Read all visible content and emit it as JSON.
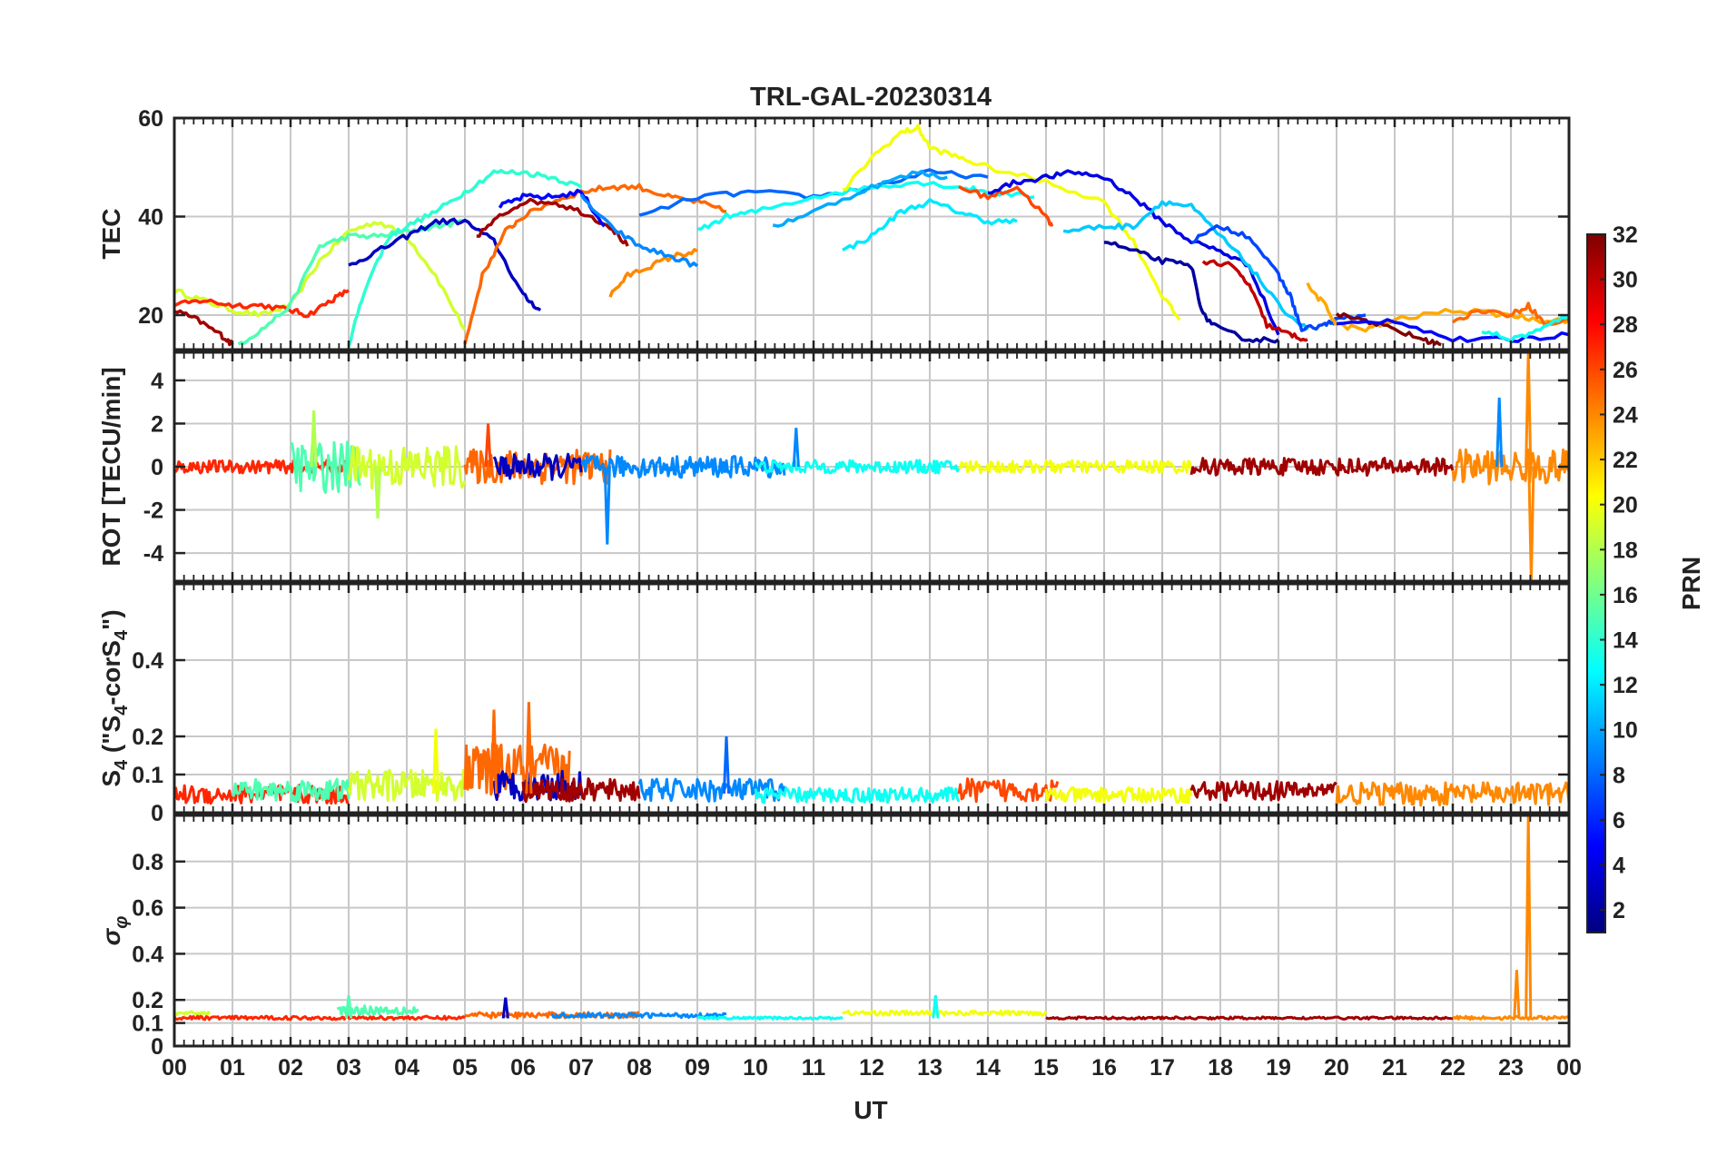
{
  "figure": {
    "title": "TRL-GAL-20230314",
    "xlabel": "UT",
    "x_tick_labels": [
      "00",
      "01",
      "02",
      "03",
      "04",
      "05",
      "06",
      "07",
      "08",
      "09",
      "10",
      "11",
      "12",
      "13",
      "14",
      "15",
      "16",
      "17",
      "18",
      "19",
      "20",
      "21",
      "22",
      "23",
      "00"
    ]
  },
  "colorbar": {
    "label": "PRN",
    "range": [
      1,
      32
    ],
    "tick_values": [
      2,
      4,
      6,
      8,
      10,
      12,
      14,
      16,
      18,
      20,
      22,
      24,
      26,
      28,
      30,
      32
    ],
    "tick_labels": [
      "2",
      "4",
      "6",
      "8",
      "10",
      "12",
      "14",
      "16",
      "18",
      "20",
      "22",
      "24",
      "26",
      "28",
      "30",
      "32"
    ],
    "colormap": "jet"
  },
  "chart_data": [
    {
      "type": "line",
      "id": "tec",
      "title": "TRL-GAL-20230314",
      "xlabel": "",
      "ylabel": "TEC",
      "xlim": [
        0,
        24
      ],
      "ylim": [
        13,
        60
      ],
      "y_tick_values": [
        20,
        40,
        60
      ],
      "y_tick_labels": [
        "20",
        "40",
        "60"
      ],
      "grid": true,
      "series": [
        {
          "prn": 19,
          "x": [
            0,
            0.5,
            1,
            1.5,
            2,
            2.5,
            3,
            3.5,
            4,
            4.5,
            5
          ],
          "y": [
            25,
            23,
            21,
            20,
            22,
            31,
            37,
            39,
            36,
            28,
            17
          ]
        },
        {
          "prn": 27,
          "x": [
            0,
            0.5,
            1,
            1.5,
            2,
            2.3,
            2.7,
            3
          ],
          "y": [
            22,
            23,
            22,
            22,
            21,
            20,
            23,
            25
          ]
        },
        {
          "prn": 31,
          "x": [
            0,
            0.4,
            0.8,
            1
          ],
          "y": [
            21,
            19,
            16,
            14
          ]
        },
        {
          "prn": 15,
          "x": [
            1.1,
            1.5,
            2,
            2.5,
            3,
            3.5,
            4,
            4.5,
            5
          ],
          "y": [
            14,
            17,
            22,
            34,
            36,
            36,
            37,
            38,
            39
          ]
        },
        {
          "prn": 14,
          "x": [
            3,
            3.3,
            3.7,
            4,
            4.5,
            5,
            5.5,
            6,
            6.5,
            7
          ],
          "y": [
            14,
            26,
            36,
            38,
            41,
            45,
            49,
            49,
            48,
            46
          ]
        },
        {
          "prn": 3,
          "x": [
            3,
            3.5,
            4,
            4.5,
            5,
            5.5,
            6,
            6.3
          ],
          "y": [
            30,
            33,
            36,
            39,
            39,
            35,
            24,
            21
          ]
        },
        {
          "prn": 25,
          "x": [
            5,
            5.3,
            5.7,
            6,
            6.5,
            7,
            7.5,
            8,
            8.5,
            9,
            9.5
          ],
          "y": [
            14,
            28,
            37,
            40,
            43,
            45,
            46,
            46,
            44,
            43,
            41
          ]
        },
        {
          "prn": 31,
          "x": [
            5.2,
            5.6,
            6,
            6.5,
            7,
            7.5,
            7.8
          ],
          "y": [
            36,
            40,
            43,
            43,
            41,
            38,
            34
          ]
        },
        {
          "prn": 5,
          "x": [
            5.6,
            6,
            6.5,
            7,
            7.4
          ],
          "y": [
            42,
            44,
            44,
            45,
            38
          ]
        },
        {
          "prn": 24,
          "x": [
            7.5,
            7.8,
            8.2,
            8.6,
            9
          ],
          "y": [
            24,
            28,
            30,
            32,
            33
          ]
        },
        {
          "prn": 9,
          "x": [
            7,
            7.5,
            8,
            8.5,
            9
          ],
          "y": [
            44,
            38,
            34,
            32,
            30
          ]
        },
        {
          "prn": 8,
          "x": [
            8,
            9,
            10,
            11,
            12,
            13,
            14
          ],
          "y": [
            40,
            44,
            45,
            44,
            46,
            49,
            48
          ]
        },
        {
          "prn": 13,
          "x": [
            9,
            9.5,
            10,
            11,
            12,
            12.8,
            13.5,
            14,
            14.8
          ],
          "y": [
            37,
            40,
            41,
            44,
            46,
            47,
            46,
            45,
            44
          ]
        },
        {
          "prn": 10,
          "x": [
            10.3,
            11,
            12,
            12.8,
            13.3
          ],
          "y": [
            38,
            41,
            46,
            49,
            48
          ]
        },
        {
          "prn": 12,
          "x": [
            11.5,
            12,
            12.5,
            13,
            13.5,
            14,
            14.5
          ],
          "y": [
            33,
            36,
            41,
            43,
            41,
            39,
            39
          ]
        },
        {
          "prn": 20,
          "x": [
            11.5,
            12,
            12.5,
            12.8,
            13,
            13.5,
            14,
            15,
            16,
            16.5,
            17,
            17.3
          ],
          "y": [
            45,
            52,
            57,
            58,
            54,
            52,
            50,
            47,
            43,
            35,
            24,
            19
          ]
        },
        {
          "prn": 26,
          "x": [
            13.5,
            14,
            14.5,
            15,
            15.1
          ],
          "y": [
            46,
            44,
            46,
            40,
            38
          ]
        },
        {
          "prn": 4,
          "x": [
            14,
            14.5,
            15,
            15.5,
            16,
            16.5,
            17,
            17.5,
            18,
            18.5,
            19
          ],
          "y": [
            45,
            47,
            48,
            49,
            48,
            44,
            39,
            35,
            33,
            30,
            16
          ]
        },
        {
          "prn": 11,
          "x": [
            15.3,
            16,
            16.5,
            17,
            17.5,
            18,
            18.5,
            19,
            19.5
          ],
          "y": [
            37,
            38,
            38,
            43,
            42,
            36,
            30,
            22,
            17
          ]
        },
        {
          "prn": 2,
          "x": [
            16,
            16.5,
            17,
            17.5,
            17.7,
            18,
            18.5,
            19
          ],
          "y": [
            35,
            33,
            31,
            30,
            20,
            17,
            15,
            15
          ]
        },
        {
          "prn": 7,
          "x": [
            17.5,
            18,
            18.5,
            19,
            19.2,
            19.4,
            19.8,
            20,
            20.5
          ],
          "y": [
            35,
            38,
            36,
            28,
            24,
            17,
            18,
            19,
            20
          ]
        },
        {
          "prn": 30,
          "x": [
            17.7,
            18.2,
            18.5,
            18.8,
            19.2,
            19.5
          ],
          "y": [
            31,
            30,
            26,
            18,
            16,
            15
          ]
        },
        {
          "prn": 23,
          "x": [
            19.5,
            19.8,
            20,
            20.5,
            21,
            22,
            23,
            23.5,
            24
          ],
          "y": [
            26,
            22,
            18,
            17,
            19,
            21,
            20,
            19,
            19
          ]
        },
        {
          "prn": 32,
          "x": [
            20,
            20.5,
            21,
            21.5,
            21.8
          ],
          "y": [
            20,
            19,
            17,
            15,
            14
          ]
        },
        {
          "prn": 5,
          "x": [
            20,
            21,
            22,
            23,
            24
          ],
          "y": [
            18,
            19,
            15,
            15,
            16
          ]
        },
        {
          "prn": 25,
          "x": [
            22,
            22.5,
            23,
            23.3,
            23.6,
            24
          ],
          "y": [
            19,
            21,
            20,
            22,
            18,
            19
          ]
        },
        {
          "prn": 13,
          "x": [
            22.5,
            23,
            23.5,
            24
          ],
          "y": [
            17,
            15,
            17,
            20
          ]
        }
      ]
    },
    {
      "type": "line",
      "id": "rot",
      "xlabel": "",
      "ylabel": "ROT [TECU/min]",
      "xlim": [
        0,
        24
      ],
      "ylim": [
        -5.3,
        5.3
      ],
      "y_tick_values": [
        -4,
        -2,
        0,
        2,
        4
      ],
      "y_tick_labels": [
        "-4",
        "-2",
        "0",
        "2",
        "4"
      ],
      "grid": true,
      "noise_bands": [
        {
          "prn": 27,
          "x_range": [
            0,
            3
          ],
          "amplitude": 0.3
        },
        {
          "prn": 15,
          "x_range": [
            2,
            3.2
          ],
          "amplitude": 1.2
        },
        {
          "prn": 19,
          "x_range": [
            3,
            5
          ],
          "amplitude": 1.0
        },
        {
          "prn": 25,
          "x_range": [
            5,
            7.5
          ],
          "amplitude": 0.8
        },
        {
          "prn": 3,
          "x_range": [
            5.5,
            7
          ],
          "amplitude": 0.6
        },
        {
          "prn": 9,
          "x_range": [
            7,
            10.5
          ],
          "amplitude": 0.5
        },
        {
          "prn": 13,
          "x_range": [
            10,
            13.5
          ],
          "amplitude": 0.3
        },
        {
          "prn": 20,
          "x_range": [
            13.5,
            17.5
          ],
          "amplitude": 0.3
        },
        {
          "prn": 31,
          "x_range": [
            17.5,
            22
          ],
          "amplitude": 0.4
        },
        {
          "prn": 24,
          "x_range": [
            22,
            24
          ],
          "amplitude": 0.8
        }
      ],
      "spikes": [
        {
          "x": 2.4,
          "y": 2.6
        },
        {
          "x": 3.5,
          "y": -2.4
        },
        {
          "x": 5.4,
          "y": 2.0
        },
        {
          "x": 7.45,
          "y": -3.6
        },
        {
          "x": 10.7,
          "y": 1.8
        },
        {
          "x": 22.8,
          "y": 3.2
        },
        {
          "x": 23.3,
          "y": 5.3
        },
        {
          "x": 23.35,
          "y": -5.3
        }
      ]
    },
    {
      "type": "line",
      "id": "s4",
      "xlabel": "",
      "ylabel": "S_4 (\"S_4-corS_4\")",
      "ylabel_parts": {
        "base": "S",
        "sub": "4",
        "open": " (\"",
        "mid": "-corS",
        "close": "\")"
      },
      "xlim": [
        0,
        24
      ],
      "ylim": [
        0,
        0.6
      ],
      "y_tick_values": [
        0,
        0.1,
        0.2,
        0.4
      ],
      "y_tick_labels": [
        "0",
        "0.1",
        "0.2",
        "0.4"
      ],
      "grid": true,
      "noise_bands": [
        {
          "prn": 27,
          "x_range": [
            0,
            3
          ],
          "base": 0.04,
          "amplitude": 0.05
        },
        {
          "prn": 15,
          "x_range": [
            1,
            3
          ],
          "base": 0.05,
          "amplitude": 0.06
        },
        {
          "prn": 19,
          "x_range": [
            3,
            5
          ],
          "base": 0.06,
          "amplitude": 0.08
        },
        {
          "prn": 25,
          "x_range": [
            5,
            6.8
          ],
          "base": 0.09,
          "amplitude": 0.14
        },
        {
          "prn": 3,
          "x_range": [
            5.5,
            7
          ],
          "base": 0.06,
          "amplitude": 0.08
        },
        {
          "prn": 31,
          "x_range": [
            6,
            8
          ],
          "base": 0.05,
          "amplitude": 0.06
        },
        {
          "prn": 9,
          "x_range": [
            8,
            10.5
          ],
          "base": 0.05,
          "amplitude": 0.06
        },
        {
          "prn": 13,
          "x_range": [
            10,
            13.5
          ],
          "base": 0.04,
          "amplitude": 0.04
        },
        {
          "prn": 26,
          "x_range": [
            13.5,
            15.2
          ],
          "base": 0.05,
          "amplitude": 0.06
        },
        {
          "prn": 20,
          "x_range": [
            15,
            17.5
          ],
          "base": 0.04,
          "amplitude": 0.04
        },
        {
          "prn": 31,
          "x_range": [
            17.5,
            20
          ],
          "base": 0.05,
          "amplitude": 0.05
        },
        {
          "prn": 24,
          "x_range": [
            20,
            24
          ],
          "base": 0.04,
          "amplitude": 0.06
        }
      ],
      "peaks": [
        {
          "x": 4.5,
          "y": 0.22
        },
        {
          "x": 5.5,
          "y": 0.27
        },
        {
          "x": 6.1,
          "y": 0.29
        },
        {
          "x": 9.5,
          "y": 0.2
        }
      ]
    },
    {
      "type": "line",
      "id": "sigma_phi",
      "xlabel": "UT",
      "ylabel": "σ_φ",
      "xlim": [
        0,
        24
      ],
      "ylim": [
        0,
        1.0
      ],
      "y_tick_values": [
        0,
        0.1,
        0.2,
        0.4,
        0.6,
        0.8
      ],
      "y_tick_labels": [
        "0",
        "0.1",
        "0.2",
        "0.4",
        "0.6",
        "0.8"
      ],
      "grid": true,
      "noise_bands": [
        {
          "prn": 19,
          "x_range": [
            0,
            0.6
          ],
          "base": 0.14,
          "amplitude": 0.015
        },
        {
          "prn": 27,
          "x_range": [
            0,
            5
          ],
          "base": 0.12,
          "amplitude": 0.015
        },
        {
          "prn": 15,
          "x_range": [
            2.8,
            4.2
          ],
          "base": 0.15,
          "amplitude": 0.04
        },
        {
          "prn": 25,
          "x_range": [
            5,
            8
          ],
          "base": 0.13,
          "amplitude": 0.025
        },
        {
          "prn": 9,
          "x_range": [
            6.5,
            9.5
          ],
          "base": 0.13,
          "amplitude": 0.02
        },
        {
          "prn": 13,
          "x_range": [
            9,
            11.5
          ],
          "base": 0.12,
          "amplitude": 0.01
        },
        {
          "prn": 20,
          "x_range": [
            11.5,
            15
          ],
          "base": 0.14,
          "amplitude": 0.02
        },
        {
          "prn": 31,
          "x_range": [
            15,
            22
          ],
          "base": 0.12,
          "amplitude": 0.01
        },
        {
          "prn": 24,
          "x_range": [
            22,
            24
          ],
          "base": 0.12,
          "amplitude": 0.015
        }
      ],
      "peaks": [
        {
          "x": 3.0,
          "y": 0.22
        },
        {
          "x": 5.7,
          "y": 0.21
        },
        {
          "x": 13.1,
          "y": 0.22
        },
        {
          "x": 23.1,
          "y": 0.33
        },
        {
          "x": 23.3,
          "y": 1.0
        }
      ]
    }
  ]
}
